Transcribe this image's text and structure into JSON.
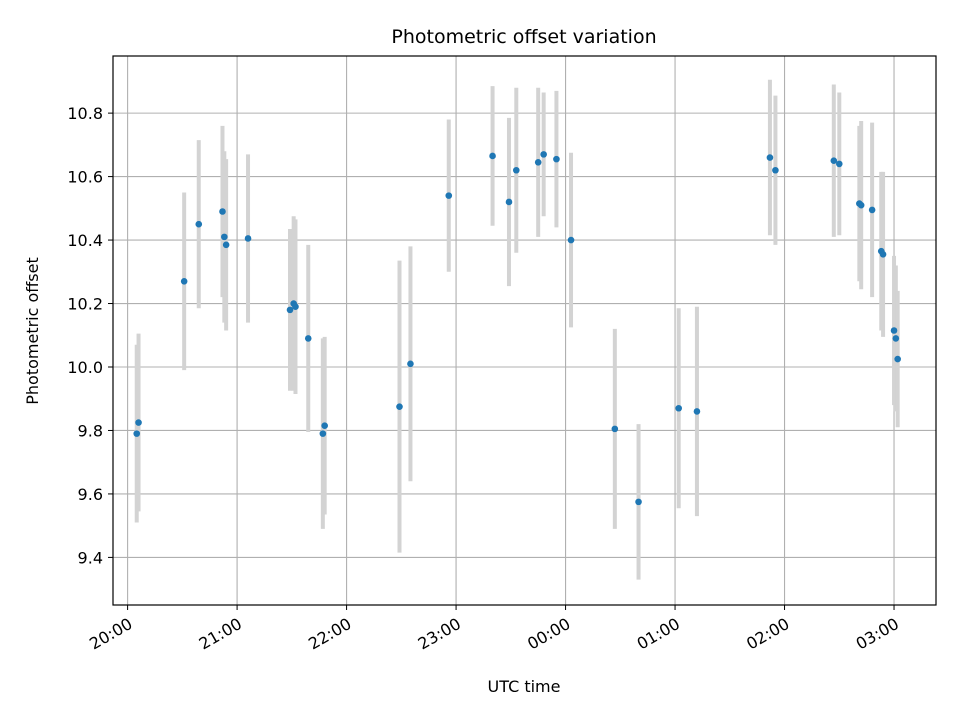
{
  "chart_data": {
    "type": "scatter",
    "title": "Photometric offset variation",
    "xlabel": "UTC time",
    "ylabel": "Photometric offset",
    "grid": true,
    "xlim": [
      "19:52",
      "03:23"
    ],
    "ylim": [
      9.25,
      10.98
    ],
    "x_ticks": [
      "20:00",
      "21:00",
      "22:00",
      "23:00",
      "00:00",
      "01:00",
      "02:00",
      "03:00"
    ],
    "y_ticks": [
      "9.4",
      "9.6",
      "9.8",
      "10.0",
      "10.2",
      "10.4",
      "10.6",
      "10.8"
    ],
    "colors": {
      "point": "#1f77b4",
      "errorbar": "#d3d3d3",
      "grid": "#b0b0b0"
    },
    "points": [
      {
        "time": "20:05",
        "y": 9.79,
        "err": 0.28
      },
      {
        "time": "20:06",
        "y": 9.825,
        "err": 0.28
      },
      {
        "time": "20:31",
        "y": 10.27,
        "err": 0.28
      },
      {
        "time": "20:39",
        "y": 10.45,
        "err": 0.265
      },
      {
        "time": "20:52",
        "y": 10.49,
        "err": 0.27
      },
      {
        "time": "20:53",
        "y": 10.41,
        "err": 0.27
      },
      {
        "time": "20:54",
        "y": 10.385,
        "err": 0.27
      },
      {
        "time": "21:06",
        "y": 10.405,
        "err": 0.265
      },
      {
        "time": "21:29",
        "y": 10.18,
        "err": 0.255
      },
      {
        "time": "21:31",
        "y": 10.2,
        "err": 0.275
      },
      {
        "time": "21:32",
        "y": 10.19,
        "err": 0.275
      },
      {
        "time": "21:39",
        "y": 10.09,
        "err": 0.295
      },
      {
        "time": "21:47",
        "y": 9.79,
        "err": 0.3
      },
      {
        "time": "21:48",
        "y": 9.815,
        "err": 0.28
      },
      {
        "time": "22:29",
        "y": 9.875,
        "err": 0.46
      },
      {
        "time": "22:35",
        "y": 10.01,
        "err": 0.37
      },
      {
        "time": "22:56",
        "y": 10.54,
        "err": 0.24
      },
      {
        "time": "23:20",
        "y": 10.665,
        "err": 0.22
      },
      {
        "time": "23:29",
        "y": 10.52,
        "err": 0.265
      },
      {
        "time": "23:33",
        "y": 10.62,
        "err": 0.26
      },
      {
        "time": "23:45",
        "y": 10.645,
        "err": 0.235
      },
      {
        "time": "23:48",
        "y": 10.67,
        "err": 0.195
      },
      {
        "time": "23:55",
        "y": 10.655,
        "err": 0.215
      },
      {
        "time": "00:03",
        "y": 10.4,
        "err": 0.275
      },
      {
        "time": "00:27",
        "y": 9.805,
        "err": 0.315
      },
      {
        "time": "00:40",
        "y": 9.575,
        "err": 0.245
      },
      {
        "time": "01:02",
        "y": 9.87,
        "err": 0.315
      },
      {
        "time": "01:12",
        "y": 9.86,
        "err": 0.33
      },
      {
        "time": "01:52",
        "y": 10.66,
        "err": 0.245
      },
      {
        "time": "01:55",
        "y": 10.62,
        "err": 0.235
      },
      {
        "time": "02:27",
        "y": 10.65,
        "err": 0.24
      },
      {
        "time": "02:30",
        "y": 10.64,
        "err": 0.225
      },
      {
        "time": "02:41",
        "y": 10.515,
        "err": 0.245
      },
      {
        "time": "02:42",
        "y": 10.51,
        "err": 0.265
      },
      {
        "time": "02:48",
        "y": 10.495,
        "err": 0.275
      },
      {
        "time": "02:53",
        "y": 10.365,
        "err": 0.25
      },
      {
        "time": "02:54",
        "y": 10.355,
        "err": 0.26
      },
      {
        "time": "03:00",
        "y": 10.115,
        "err": 0.235
      },
      {
        "time": "03:01",
        "y": 10.09,
        "err": 0.23
      },
      {
        "time": "03:02",
        "y": 10.025,
        "err": 0.215
      }
    ]
  }
}
